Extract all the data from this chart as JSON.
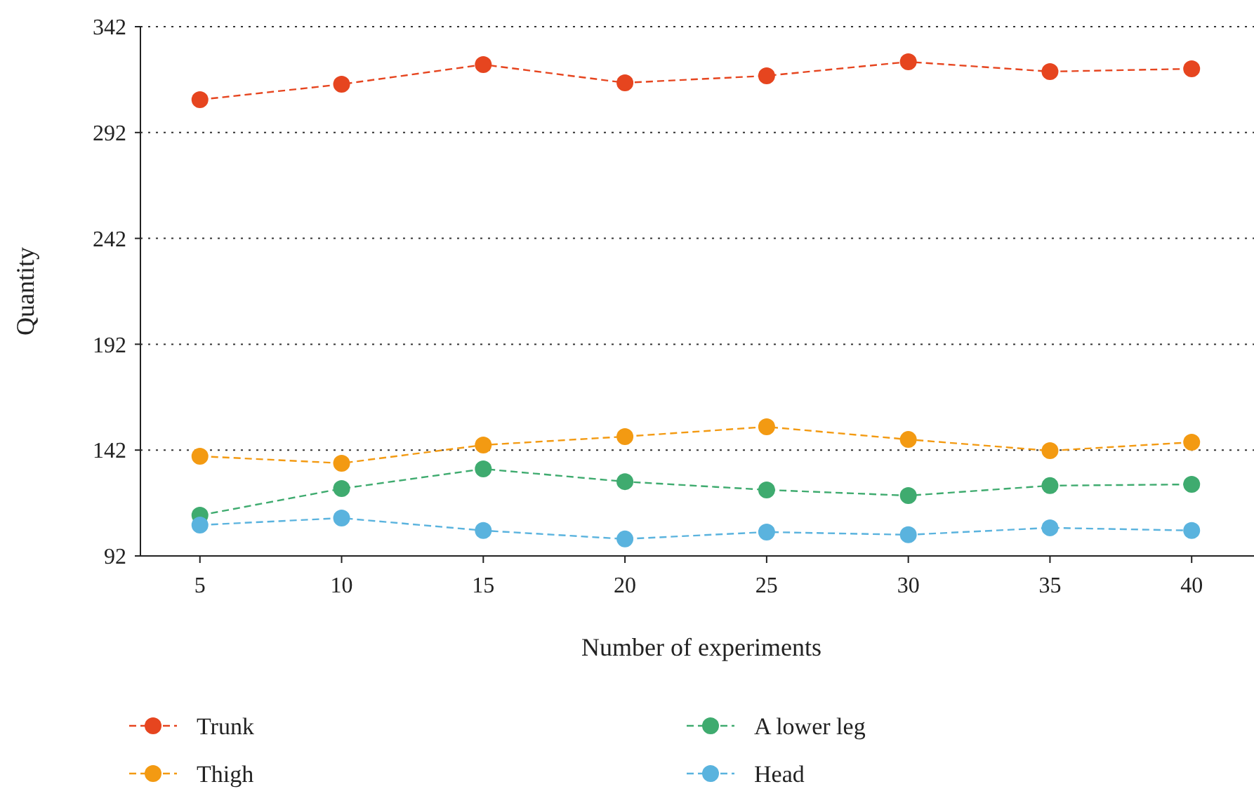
{
  "chart_data": {
    "type": "line",
    "xlabel": "Number of experiments",
    "ylabel": "Quantity",
    "x": [
      5,
      10,
      15,
      20,
      25,
      30,
      35,
      40
    ],
    "series": [
      {
        "name": "Trunk",
        "color": "#e6451f",
        "values": [
          307.5,
          314.8,
          324.1,
          315.5,
          318.8,
          325.4,
          320.8,
          322.1
        ]
      },
      {
        "name": "Thigh",
        "color": "#f39a12",
        "values": [
          139.1,
          135.8,
          144.4,
          148.4,
          153.0,
          147.0,
          141.7,
          145.7
        ]
      },
      {
        "name": "A lower leg",
        "color": "#3fab6f",
        "values": [
          111.2,
          123.8,
          133.1,
          127.1,
          123.2,
          120.5,
          125.2,
          125.8
        ]
      },
      {
        "name": "Head",
        "color": "#5ab3de",
        "values": [
          106.6,
          109.9,
          104.0,
          100.0,
          103.3,
          102.0,
          105.3,
          104.0
        ]
      }
    ],
    "xlim": [
      2.9,
      42.2
    ],
    "xticks": [
      5,
      10,
      15,
      20,
      25,
      30,
      35,
      40
    ],
    "ylim": [
      92,
      342
    ],
    "yticks": [
      92,
      142,
      192,
      242,
      292,
      342
    ],
    "grid": "y",
    "legend": "bottom",
    "marker": "circle",
    "line_style": "dashed"
  }
}
